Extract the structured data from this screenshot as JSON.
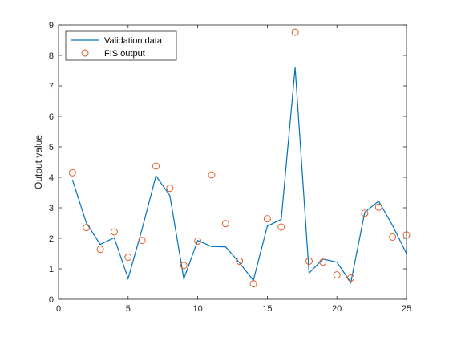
{
  "chart_data": {
    "type": "line",
    "title": "",
    "xlabel": "",
    "ylabel": "Output value",
    "xlim": [
      0,
      25
    ],
    "ylim": [
      0,
      9
    ],
    "xticks": [
      "0",
      "5",
      "10",
      "15",
      "20",
      "25"
    ],
    "yticks": [
      "0",
      "1",
      "2",
      "3",
      "4",
      "5",
      "6",
      "7",
      "8",
      "9"
    ],
    "grid": false,
    "legend_position": "top-left",
    "x": [
      1,
      2,
      3,
      4,
      5,
      6,
      7,
      8,
      9,
      10,
      11,
      12,
      13,
      14,
      15,
      16,
      17,
      18,
      19,
      20,
      21,
      22,
      23,
      24,
      25
    ],
    "series": [
      {
        "name": "Validation data",
        "style": "line",
        "color": "#0072BD",
        "values": [
          3.92,
          2.5,
          1.8,
          2.02,
          0.68,
          2.3,
          4.05,
          3.4,
          0.67,
          1.93,
          1.73,
          1.72,
          1.2,
          0.62,
          2.4,
          2.62,
          7.6,
          0.86,
          1.32,
          1.22,
          0.55,
          2.85,
          3.22,
          2.42,
          1.5
        ]
      },
      {
        "name": "FIS output",
        "style": "marker-circle",
        "color": "#D95319",
        "values": [
          4.15,
          2.35,
          1.64,
          2.21,
          1.38,
          1.93,
          4.37,
          3.64,
          1.11,
          1.91,
          4.08,
          2.48,
          1.25,
          0.51,
          2.64,
          2.37,
          8.76,
          1.25,
          1.22,
          0.8,
          0.7,
          2.82,
          3.02,
          2.04,
          2.11
        ]
      }
    ]
  }
}
